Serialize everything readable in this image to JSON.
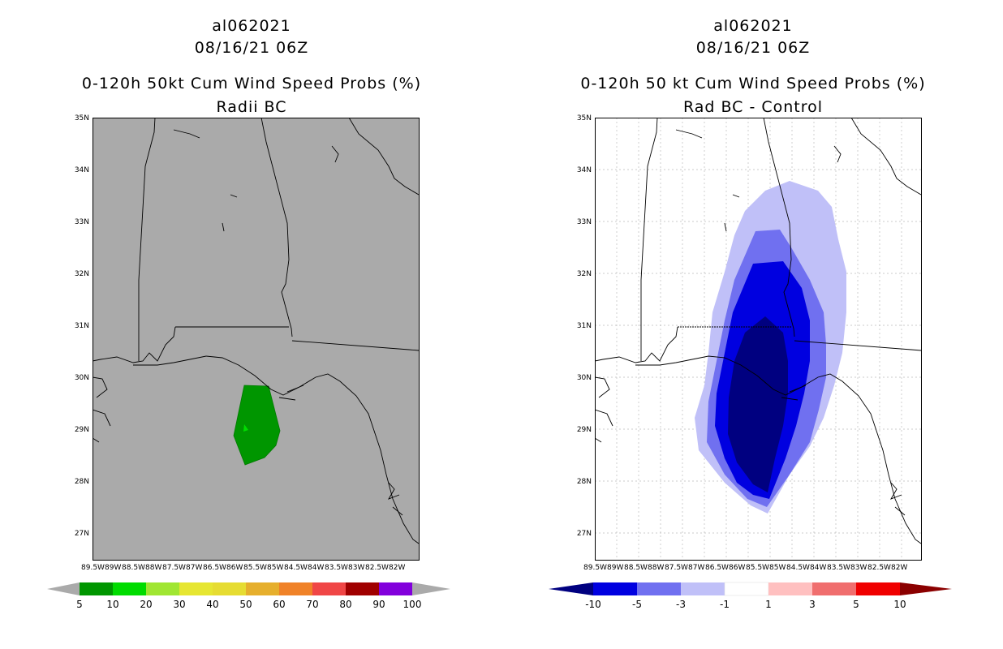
{
  "left_panel": {
    "storm_id": "al062021",
    "datetime": "08/16/21 06Z",
    "product": "0-120h 50kt Cum Wind Speed Probs (%)",
    "subtitle": "Radii BC",
    "background_color": "#aaaaaa"
  },
  "right_panel": {
    "storm_id": "al062021",
    "datetime": "08/16/21 06Z",
    "product": "0-120h 50 kt Cum Wind Speed Probs (%)",
    "subtitle": "Rad BC - Control",
    "background_color": "#ffffff"
  },
  "lat_labels": [
    "35N",
    "34N",
    "33N",
    "32N",
    "31N",
    "30N",
    "29N",
    "28N",
    "27N"
  ],
  "lon_labels": [
    "89.5W",
    "89W",
    "88.5W",
    "88W",
    "87.5W",
    "87W",
    "86.5W",
    "86W",
    "85.5W",
    "85W",
    "84.5W",
    "84W",
    "83.5W",
    "83W",
    "82.5W",
    "82W"
  ],
  "left_colorbar": {
    "labels": [
      "5",
      "10",
      "20",
      "30",
      "40",
      "50",
      "60",
      "70",
      "80",
      "90",
      "100"
    ],
    "colors": [
      "#009600",
      "#00dc00",
      "#a0e632",
      "#e6e632",
      "#e6dc32",
      "#e6af2d",
      "#f08228",
      "#f04646",
      "#a00000",
      "#8200dc"
    ],
    "end_color": "#aaaaaa"
  },
  "right_colorbar": {
    "labels": [
      "-10",
      "-5",
      "-3",
      "-1",
      "1",
      "3",
      "5",
      "10"
    ],
    "colors": [
      "#0000e0",
      "#7070f0",
      "#c0c0f8",
      "#ffffff",
      "#ffc0c0",
      "#f06e6e",
      "#f00000"
    ],
    "low_end_color": "#000080",
    "high_end_color": "#8b0000"
  },
  "left_map_data": {
    "field": "cumulative 50kt wind speed probability",
    "contour_level_pct": 5,
    "region_center": "29.2N 85.9W"
  },
  "right_map_data": {
    "field": "probability difference (Rad BC - Control)",
    "contour_levels_pct": [
      -1,
      -3,
      -5,
      -10
    ],
    "region_center": "29.8N 85.4W"
  }
}
